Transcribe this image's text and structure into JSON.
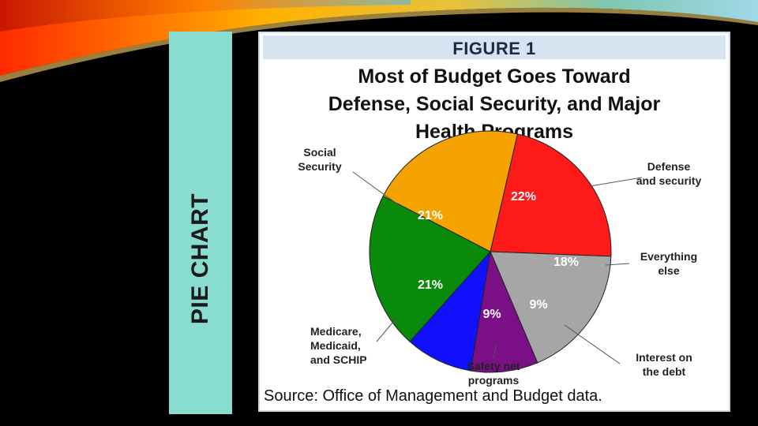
{
  "side_title": "PIE CHART",
  "figure_label": "FIGURE 1",
  "source": "Source: Office of Management and Budget data.",
  "colors": {
    "background": "#000000",
    "side_bar": "#88dcd0",
    "figure_band": "#d6e3f0"
  },
  "chart_data": {
    "type": "pie",
    "title": "Most of Budget Goes Toward Defense, Social Security, and Major Health Programs",
    "title_lines": [
      "Most of Budget Goes Toward",
      "Defense, Social Security, and Major",
      "Health Programs"
    ],
    "slices": [
      {
        "label": "Defense and security",
        "label_lines": [
          "Defense",
          "and security"
        ],
        "value": 22,
        "display": "22%",
        "color": "#ff1a1a"
      },
      {
        "label": "Everything else",
        "label_lines": [
          "Everything",
          "else"
        ],
        "value": 18,
        "display": "18%",
        "color": "#a6a6a6"
      },
      {
        "label": "Interest on the debt",
        "label_lines": [
          "Interest on",
          "the debt"
        ],
        "value": 9,
        "display": "9%",
        "color": "#7a0f86"
      },
      {
        "label": "Safety net programs",
        "label_lines": [
          "Safety net",
          "programs"
        ],
        "value": 9,
        "display": "9%",
        "color": "#1010ff"
      },
      {
        "label": "Medicare, Medicaid, and SCHIP",
        "label_lines": [
          "Medicare,",
          "Medicaid,",
          "and SCHIP"
        ],
        "value": 21,
        "display": "21%",
        "color": "#0a8a0a"
      },
      {
        "label": "Social Security",
        "label_lines": [
          "Social",
          "Security"
        ],
        "value": 21,
        "display": "21%",
        "color": "#f5a300"
      }
    ]
  }
}
